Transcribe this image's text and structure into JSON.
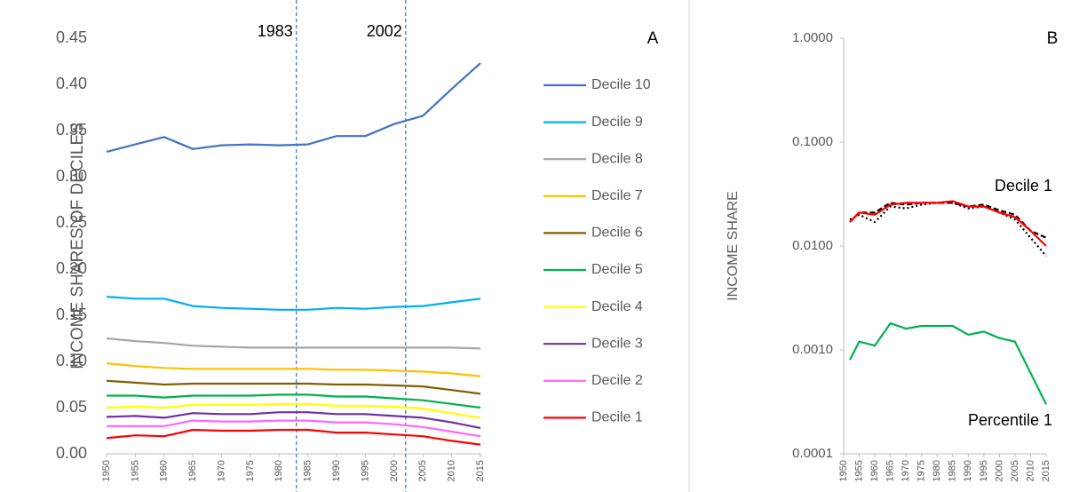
{
  "chart_data": [
    {
      "type": "line",
      "panel_label": "A",
      "ylabel": "INCOME SHARES OF DECILES",
      "x": [
        1950,
        1955,
        1960,
        1965,
        1970,
        1975,
        1980,
        1985,
        1990,
        1995,
        2000,
        2005,
        2010,
        2015
      ],
      "xlim": [
        1950,
        2015
      ],
      "xticks": [
        1950,
        1955,
        1960,
        1965,
        1970,
        1975,
        1980,
        1985,
        1990,
        1995,
        2000,
        2005,
        2010,
        2015
      ],
      "ylim": [
        0,
        0.45
      ],
      "yticks": [
        {
          "value": 0,
          "label": "0.00"
        },
        {
          "value": 0.05,
          "label": "0.05"
        },
        {
          "value": 0.1,
          "label": "0.10"
        },
        {
          "value": 0.15,
          "label": "0.15"
        },
        {
          "value": 0.2,
          "label": "0.20"
        },
        {
          "value": 0.25,
          "label": "0.25"
        },
        {
          "value": 0.3,
          "label": "0.30"
        },
        {
          "value": 0.35,
          "label": "0.35"
        },
        {
          "value": 0.4,
          "label": "0.40"
        },
        {
          "value": 0.45,
          "label": "0.45"
        }
      ],
      "vlines": [
        1983,
        2002
      ],
      "series": [
        {
          "name": "Decile 10",
          "color": "#4472c4",
          "values": [
            0.327,
            0.335,
            0.343,
            0.33,
            0.334,
            0.335,
            0.334,
            0.335,
            0.344,
            0.344,
            0.357,
            0.366,
            0.395,
            0.423
          ]
        },
        {
          "name": "Decile 9",
          "color": "#00b0f0",
          "values": [
            0.17,
            0.168,
            0.168,
            0.16,
            0.158,
            0.157,
            0.156,
            0.156,
            0.158,
            0.157,
            0.159,
            0.16,
            0.164,
            0.168
          ]
        },
        {
          "name": "Decile 8",
          "color": "#a5a5a5",
          "values": [
            0.125,
            0.122,
            0.12,
            0.117,
            0.116,
            0.115,
            0.115,
            0.115,
            0.115,
            0.115,
            0.115,
            0.115,
            0.115,
            0.114
          ]
        },
        {
          "name": "Decile 7",
          "color": "#ffc000",
          "values": [
            0.098,
            0.095,
            0.093,
            0.092,
            0.092,
            0.092,
            0.092,
            0.092,
            0.091,
            0.091,
            0.09,
            0.089,
            0.087,
            0.084
          ]
        },
        {
          "name": "Decile 6",
          "color": "#7f6000",
          "values": [
            0.079,
            0.077,
            0.075,
            0.076,
            0.076,
            0.076,
            0.076,
            0.076,
            0.075,
            0.075,
            0.074,
            0.073,
            0.069,
            0.065
          ]
        },
        {
          "name": "Decile 5",
          "color": "#00b050",
          "values": [
            0.063,
            0.063,
            0.061,
            0.063,
            0.063,
            0.063,
            0.064,
            0.064,
            0.062,
            0.062,
            0.06,
            0.058,
            0.054,
            0.05
          ]
        },
        {
          "name": "Decile 4",
          "color": "#ffff00",
          "values": [
            0.05,
            0.051,
            0.05,
            0.053,
            0.053,
            0.053,
            0.054,
            0.054,
            0.052,
            0.052,
            0.051,
            0.049,
            0.044,
            0.039
          ]
        },
        {
          "name": "Decile 3",
          "color": "#7030a0",
          "values": [
            0.04,
            0.041,
            0.039,
            0.044,
            0.043,
            0.043,
            0.045,
            0.045,
            0.043,
            0.043,
            0.041,
            0.039,
            0.034,
            0.028
          ]
        },
        {
          "name": "Decile 2",
          "color": "#ff66ff",
          "values": [
            0.03,
            0.03,
            0.03,
            0.036,
            0.035,
            0.035,
            0.036,
            0.036,
            0.034,
            0.034,
            0.032,
            0.029,
            0.024,
            0.019
          ]
        },
        {
          "name": "Decile 1",
          "color": "#ff0000",
          "values": [
            0.017,
            0.02,
            0.019,
            0.026,
            0.025,
            0.025,
            0.026,
            0.026,
            0.023,
            0.023,
            0.021,
            0.019,
            0.014,
            0.01
          ]
        }
      ]
    },
    {
      "type": "line",
      "panel_label": "B",
      "ylabel": "INCOME SHARE",
      "log_scale": true,
      "x": [
        1952,
        1955,
        1960,
        1965,
        1970,
        1975,
        1980,
        1985,
        1990,
        1995,
        2000,
        2005,
        2010,
        2015
      ],
      "xlim": [
        1950,
        2015
      ],
      "xticks": [
        1950,
        1955,
        1960,
        1965,
        1970,
        1975,
        1980,
        1985,
        1990,
        1995,
        2000,
        2005,
        2010,
        2015
      ],
      "ylim": [
        0.0001,
        1
      ],
      "yticks": [
        {
          "value": 0.0001,
          "label": "0.0001"
        },
        {
          "value": 0.001,
          "label": "0.0010"
        },
        {
          "value": 0.01,
          "label": "0.0100"
        },
        {
          "value": 0.1,
          "label": "0.1000"
        },
        {
          "value": 1,
          "label": "1.0000"
        }
      ],
      "annotations": [
        "Decile 1",
        "Percentile 1"
      ],
      "series": [
        {
          "color": "#000000",
          "dash": "dashed",
          "values": [
            0.017,
            0.021,
            0.021,
            0.026,
            0.025,
            0.026,
            0.026,
            0.026,
            0.024,
            0.025,
            0.022,
            0.02,
            0.014,
            0.012
          ]
        },
        {
          "color": "#000000",
          "dash": "dotted",
          "values": [
            0.018,
            0.02,
            0.017,
            0.024,
            0.023,
            0.025,
            0.026,
            0.026,
            0.023,
            0.024,
            0.021,
            0.018,
            0.012,
            0.008
          ]
        },
        {
          "color": "#ff0000",
          "values": [
            0.017,
            0.021,
            0.02,
            0.025,
            0.026,
            0.026,
            0.026,
            0.027,
            0.024,
            0.024,
            0.021,
            0.019,
            0.014,
            0.01
          ]
        },
        {
          "color": "#00b050",
          "values": [
            0.0008,
            0.0012,
            0.0011,
            0.0018,
            0.0016,
            0.0017,
            0.0017,
            0.0017,
            0.0014,
            0.0015,
            0.0013,
            0.0012,
            0.0006,
            0.0003
          ]
        }
      ]
    }
  ]
}
